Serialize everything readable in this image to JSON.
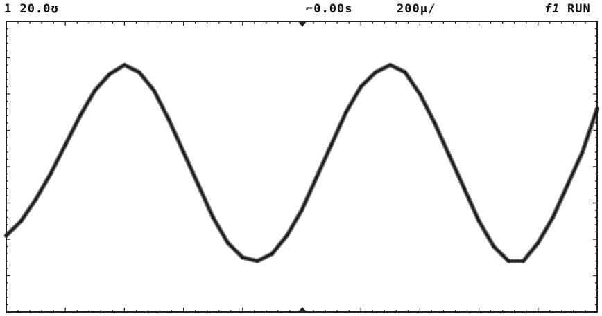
{
  "status": {
    "channel": "1",
    "volts_per_div": "20.0",
    "volts_unit_glyph": "ʊ",
    "delay": "0.00s",
    "time_per_div": "200µ/",
    "trigger_source": "f1",
    "run_state": "RUN"
  },
  "colors": {
    "trace": "#1a1a1a",
    "graticule": "#222222",
    "background": "#ffffff"
  },
  "chart_data": {
    "type": "line",
    "title": "",
    "xlabel": "",
    "ylabel": "",
    "divisions": {
      "x": 10,
      "y": 8
    },
    "x_unit": "div",
    "y_unit": "div",
    "xlim": [
      0,
      10
    ],
    "ylim": [
      -4,
      4
    ],
    "series": [
      {
        "name": "",
        "x": [
          0.0,
          0.25,
          0.5,
          0.75,
          1.0,
          1.25,
          1.5,
          1.75,
          2.0,
          2.25,
          2.5,
          2.75,
          3.0,
          3.25,
          3.5,
          3.75,
          4.0,
          4.25,
          4.5,
          4.75,
          5.0,
          5.25,
          5.5,
          5.75,
          6.0,
          6.25,
          6.5,
          6.75,
          7.0,
          7.25,
          7.5,
          7.75,
          8.0,
          8.25,
          8.5,
          8.75,
          9.0,
          9.25,
          9.5,
          9.75,
          10.0
        ],
        "y": [
          -1.9,
          -1.5,
          -0.9,
          -0.2,
          0.6,
          1.4,
          2.1,
          2.55,
          2.8,
          2.6,
          2.1,
          1.3,
          0.4,
          -0.5,
          -1.4,
          -2.1,
          -2.5,
          -2.6,
          -2.4,
          -1.9,
          -1.2,
          -0.3,
          0.6,
          1.5,
          2.2,
          2.6,
          2.8,
          2.6,
          2.0,
          1.2,
          0.3,
          -0.6,
          -1.5,
          -2.2,
          -2.6,
          -2.6,
          -2.1,
          -1.4,
          -0.5,
          0.4,
          1.6
        ]
      }
    ]
  }
}
